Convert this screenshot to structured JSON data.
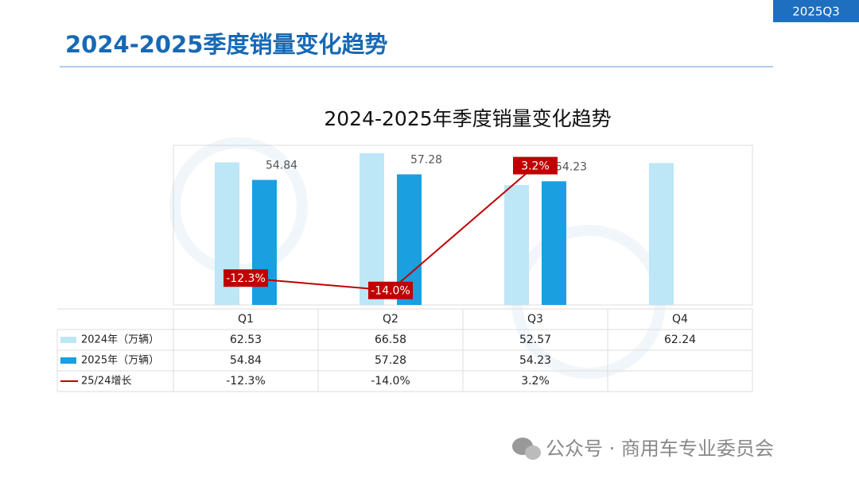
{
  "header": {
    "badge": "2025Q3",
    "title": "2024-2025季度销量变化趋势"
  },
  "chart_data": {
    "type": "bar",
    "title": "2024-2025年季度销量变化趋势",
    "categories": [
      "Q1",
      "Q2",
      "Q3",
      "Q4"
    ],
    "series": [
      {
        "name": "2024年（万辆）",
        "color": "#bde6f7",
        "values": [
          62.53,
          66.58,
          52.57,
          62.24
        ]
      },
      {
        "name": "2025年（万辆）",
        "color": "#1a9fe0",
        "values": [
          54.84,
          57.28,
          54.23,
          null
        ]
      },
      {
        "name": "25/24增长",
        "type": "line",
        "axis": "y2",
        "color": "#c00000",
        "values": [
          -12.3,
          -14.0,
          3.2,
          null
        ],
        "value_labels": [
          "-12.3%",
          "-14.0%",
          "3.2%",
          null
        ]
      }
    ],
    "ylim": [
      0,
      70
    ],
    "y2lim": [
      -16,
      6
    ]
  },
  "footer": {
    "text": "公众号 · 商用车专业委员会"
  }
}
